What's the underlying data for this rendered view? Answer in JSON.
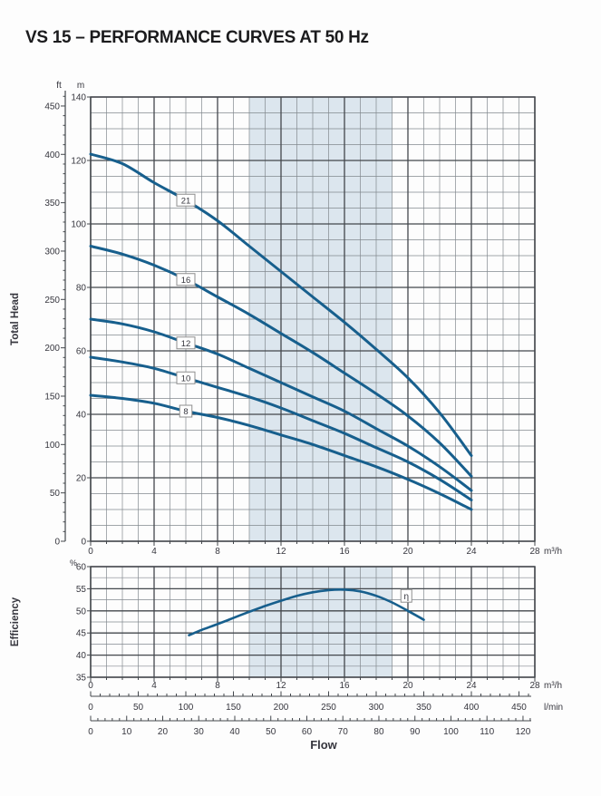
{
  "title": "VS 15 – PERFORMANCE CURVES AT 50 Hz",
  "chart_data": {
    "type": "line",
    "title": "VS 15 – PERFORMANCE CURVES AT 50 Hz",
    "head_chart": {
      "ylabel": "Total Head",
      "x_unit": "m³/h",
      "x_axis": {
        "min": 0,
        "max": 28,
        "tick_step": 4,
        "minor_step": 1,
        "ticks": [
          0,
          4,
          8,
          12,
          16,
          20,
          24,
          28
        ]
      },
      "y_axis_m": {
        "unit": "m",
        "min": 0,
        "max": 140,
        "tick_step": 20,
        "minor_step": 5,
        "ticks": [
          0,
          20,
          40,
          60,
          80,
          100,
          120,
          140
        ]
      },
      "y_axis_ft": {
        "unit": "ft",
        "min": 0,
        "max": 460,
        "label_step": 50,
        "tick_step": 10,
        "labels": [
          0,
          50,
          100,
          150,
          200,
          250,
          300,
          350,
          400,
          450
        ]
      },
      "operating_band_x": [
        10,
        19
      ],
      "grid": "minor 1 m³/h × 5 m, major 4 m³/h × 20 m",
      "curves": [
        {
          "label": "21",
          "label_at": [
            6,
            107.5
          ],
          "points": [
            [
              0,
              122
            ],
            [
              2,
              119
            ],
            [
              4,
              113
            ],
            [
              6,
              107.5
            ],
            [
              8,
              101
            ],
            [
              10,
              93
            ],
            [
              12,
              85
            ],
            [
              14,
              77
            ],
            [
              16,
              69
            ],
            [
              18,
              60.5
            ],
            [
              20,
              51.5
            ],
            [
              22,
              40.5
            ],
            [
              24,
              27
            ]
          ]
        },
        {
          "label": "16",
          "label_at": [
            6,
            82.5
          ],
          "points": [
            [
              0,
              93
            ],
            [
              2,
              90.5
            ],
            [
              4,
              87
            ],
            [
              6,
              82.5
            ],
            [
              8,
              77
            ],
            [
              10,
              71.5
            ],
            [
              12,
              65.5
            ],
            [
              14,
              59.5
            ],
            [
              16,
              53
            ],
            [
              18,
              46.5
            ],
            [
              20,
              39.5
            ],
            [
              22,
              31
            ],
            [
              24,
              20.5
            ]
          ]
        },
        {
          "label": "12",
          "label_at": [
            6,
            62.5
          ],
          "points": [
            [
              0,
              70
            ],
            [
              2,
              68.5
            ],
            [
              4,
              66
            ],
            [
              6,
              62.5
            ],
            [
              8,
              59
            ],
            [
              10,
              54.5
            ],
            [
              12,
              50
            ],
            [
              14,
              45.5
            ],
            [
              16,
              41
            ],
            [
              18,
              35.5
            ],
            [
              20,
              30
            ],
            [
              22,
              23.5
            ],
            [
              24,
              16
            ]
          ]
        },
        {
          "label": "10",
          "label_at": [
            6,
            51.5
          ],
          "points": [
            [
              0,
              58
            ],
            [
              2,
              56.5
            ],
            [
              4,
              54.5
            ],
            [
              6,
              51.5
            ],
            [
              8,
              48.5
            ],
            [
              10,
              45.5
            ],
            [
              12,
              42
            ],
            [
              14,
              38
            ],
            [
              16,
              34
            ],
            [
              18,
              29.5
            ],
            [
              20,
              25
            ],
            [
              22,
              19.5
            ],
            [
              24,
              13
            ]
          ]
        },
        {
          "label": "8",
          "label_at": [
            6,
            41
          ],
          "points": [
            [
              0,
              46
            ],
            [
              2,
              45
            ],
            [
              4,
              43.5
            ],
            [
              6,
              41
            ],
            [
              8,
              39
            ],
            [
              10,
              36.5
            ],
            [
              12,
              33.5
            ],
            [
              14,
              30.5
            ],
            [
              16,
              27
            ],
            [
              18,
              23.5
            ],
            [
              20,
              19.5
            ],
            [
              22,
              15
            ],
            [
              24,
              10
            ]
          ]
        }
      ]
    },
    "efficiency_chart": {
      "ylabel": "Efficiency",
      "x_unit": "m³/h",
      "x_axis": {
        "min": 0,
        "max": 28,
        "tick_step": 4,
        "minor_step": 1,
        "ticks": [
          0,
          4,
          8,
          12,
          16,
          20,
          24,
          28
        ]
      },
      "y_axis": {
        "unit": "%",
        "min": 35,
        "max": 60,
        "tick_step": 5,
        "minor_step": 2.5,
        "ticks": [
          35,
          40,
          45,
          50,
          55,
          60
        ]
      },
      "operating_band_x": [
        10,
        19
      ],
      "curve": {
        "label": "η",
        "label_at": [
          19.9,
          53.4
        ],
        "points": [
          [
            6.2,
            44.5
          ],
          [
            7,
            45.7
          ],
          [
            8,
            47
          ],
          [
            9,
            48.4
          ],
          [
            10,
            49.8
          ],
          [
            11,
            51.1
          ],
          [
            12,
            52.3
          ],
          [
            13,
            53.4
          ],
          [
            14,
            54.2
          ],
          [
            15,
            54.7
          ],
          [
            16,
            54.8
          ],
          [
            17,
            54.4
          ],
          [
            18,
            53.4
          ],
          [
            19,
            51.9
          ],
          [
            20,
            50
          ],
          [
            21,
            48
          ]
        ]
      }
    },
    "flow_scales": {
      "xlabel": "Flow",
      "scales": [
        {
          "unit": "l/min",
          "m3h_per_unit": 0.06,
          "label_step": 50,
          "tick_step": 10,
          "tick_max": 460,
          "labels": [
            0,
            50,
            100,
            150,
            200,
            250,
            300,
            350,
            400,
            450
          ]
        },
        {
          "unit": "",
          "m3h_per_unit": 0.227124,
          "label_step": 10,
          "tick_step": 2,
          "tick_max": 122,
          "labels": [
            0,
            10,
            20,
            30,
            40,
            50,
            60,
            70,
            80,
            90,
            100,
            110,
            120
          ]
        }
      ]
    },
    "colors": {
      "curve": "#175f8d",
      "band": "#dce6ee",
      "grid_minor": "#82888e",
      "grid_major": "#43474c",
      "text": "#36363e",
      "title": "#1b1b1d"
    }
  }
}
